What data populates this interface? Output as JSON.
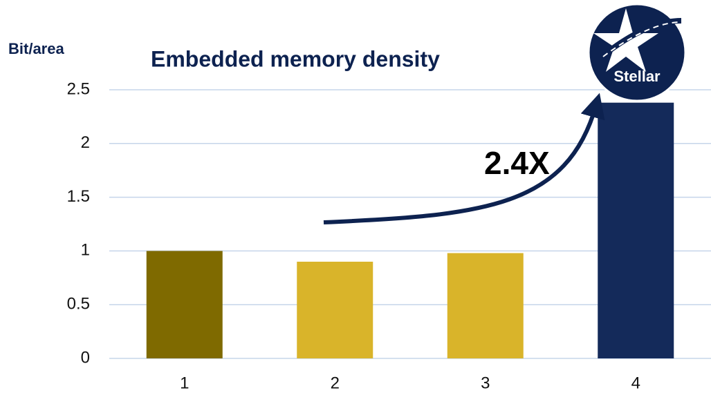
{
  "chart_data": {
    "type": "bar",
    "title": "Embedded memory density",
    "y_label": "Bit/area",
    "annotation": "2.4X",
    "logo_text": "Stellar",
    "categories": [
      "1",
      "2",
      "3",
      "4"
    ],
    "values": [
      1.0,
      0.9,
      0.98,
      2.38
    ],
    "colors": [
      "#7f6a00",
      "#d9b42a",
      "#d9b42a",
      "#142a5a"
    ],
    "ylim": [
      0,
      2.5
    ],
    "yticks": [
      0,
      0.5,
      1,
      1.5,
      2,
      2.5
    ],
    "grid": true
  }
}
